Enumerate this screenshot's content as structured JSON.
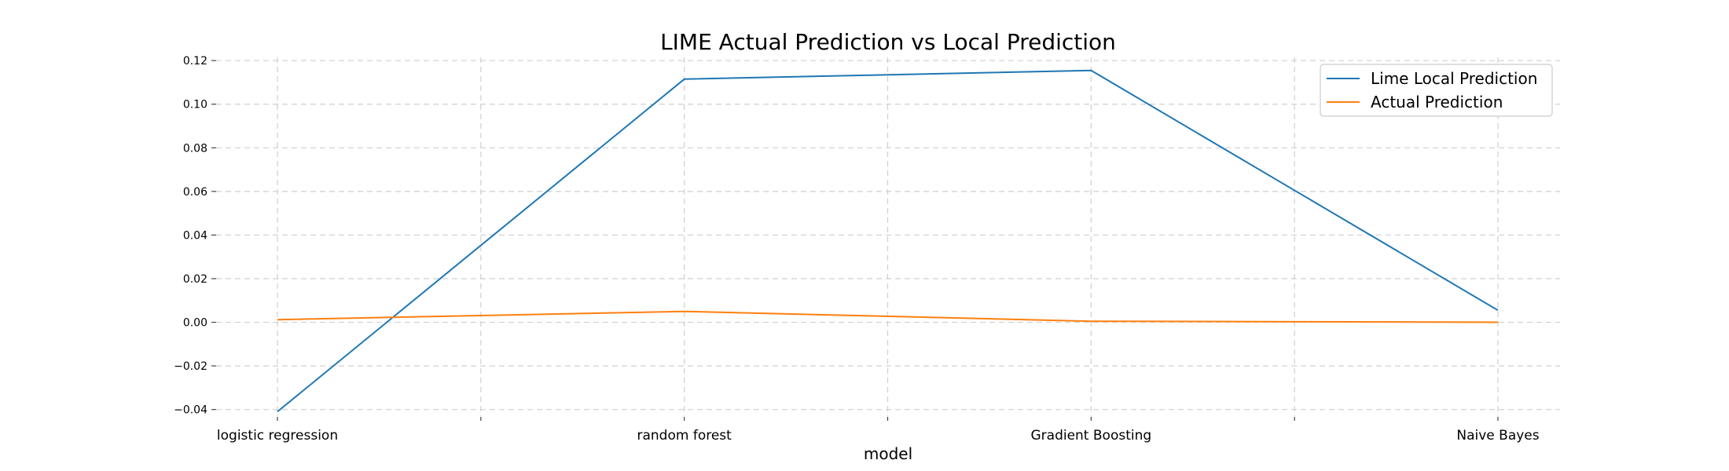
{
  "chart_data": {
    "type": "line",
    "title": "LIME Actual Prediction vs Local Prediction",
    "xlabel": "model",
    "ylabel": "",
    "categories": [
      "logistic regression",
      "random forest",
      "Gradient Boosting",
      "Naive Bayes"
    ],
    "yticks": [
      "−0.04",
      "−0.02",
      "0.00",
      "0.02",
      "0.04",
      "0.06",
      "0.08",
      "0.10",
      "0.12"
    ],
    "ytick_values": [
      -0.04,
      -0.02,
      0.0,
      0.02,
      0.04,
      0.06,
      0.08,
      0.1,
      0.12
    ],
    "ylim": [
      -0.043,
      0.1215
    ],
    "grid": true,
    "legend_position": "top-right",
    "series": [
      {
        "name": "Lime Local Prediction",
        "color": "#1f77b4",
        "values": [
          -0.041,
          0.1115,
          0.1155,
          0.0055
        ]
      },
      {
        "name": "Actual Prediction",
        "color": "#ff7f0e",
        "values": [
          0.0012,
          0.005,
          0.0005,
          0.0
        ]
      }
    ]
  }
}
